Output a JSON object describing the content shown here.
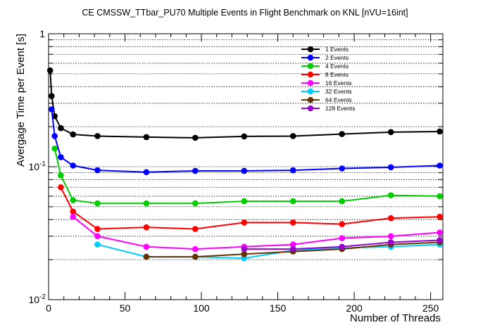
{
  "chart_data": {
    "type": "line",
    "title": "CE CMSSW_TTbar_PU70 Multiple Events in Flight Benchmark on KNL [nVU=16int]",
    "xlabel": "Number of Threads",
    "ylabel": "Avergage Time per Event [s]",
    "xlim": [
      0,
      258
    ],
    "ylim": [
      0.01,
      1
    ],
    "yscale": "log",
    "grid": "horizontal dotted",
    "legend": "top-right",
    "x_ticks": [
      0,
      50,
      100,
      150,
      200,
      250
    ],
    "x_tick_labels": [
      "0",
      "50",
      "100",
      "150",
      "200",
      "250"
    ],
    "y_tick_labels": [
      {
        "value": 0.01,
        "base": "10",
        "exp": "-2"
      },
      {
        "value": 0.1,
        "base": "10",
        "exp": "-1"
      },
      {
        "value": 1,
        "base": "1",
        "exp": ""
      }
    ],
    "series": [
      {
        "name": "1 Events",
        "color": "#000000",
        "x": [
          1,
          2,
          4,
          8,
          16,
          32,
          64,
          96,
          128,
          160,
          192,
          224,
          256
        ],
        "values": [
          0.53,
          0.34,
          0.24,
          0.195,
          0.175,
          0.17,
          0.167,
          0.165,
          0.169,
          0.17,
          0.176,
          0.182,
          0.184
        ]
      },
      {
        "name": "2 Events",
        "color": "#0000ff",
        "x": [
          2,
          4,
          8,
          16,
          32,
          64,
          96,
          128,
          160,
          192,
          224,
          256
        ],
        "values": [
          0.27,
          0.17,
          0.118,
          0.102,
          0.094,
          0.091,
          0.093,
          0.093,
          0.094,
          0.097,
          0.099,
          0.102
        ]
      },
      {
        "name": "4 Events",
        "color": "#00cc00",
        "x": [
          4,
          8,
          16,
          32,
          64,
          96,
          128,
          160,
          192,
          224,
          256
        ],
        "values": [
          0.137,
          0.086,
          0.056,
          0.053,
          0.053,
          0.053,
          0.055,
          0.055,
          0.055,
          0.061,
          0.06
        ]
      },
      {
        "name": "8 Events",
        "color": "#ff0000",
        "x": [
          8,
          16,
          32,
          64,
          96,
          128,
          160,
          192,
          224,
          256
        ],
        "values": [
          0.07,
          0.046,
          0.034,
          0.035,
          0.034,
          0.038,
          0.038,
          0.037,
          0.041,
          0.042
        ]
      },
      {
        "name": "16 Events",
        "color": "#ff00ff",
        "x": [
          16,
          32,
          64,
          96,
          128,
          160,
          192,
          224,
          256
        ],
        "values": [
          0.042,
          0.03,
          0.025,
          0.024,
          0.025,
          0.026,
          0.029,
          0.03,
          0.032
        ]
      },
      {
        "name": "32 Events",
        "color": "#00ccff",
        "x": [
          32,
          64,
          96,
          128,
          160,
          192,
          224,
          256
        ],
        "values": [
          0.026,
          0.021,
          0.021,
          0.0205,
          0.0235,
          0.0245,
          0.025,
          0.026
        ]
      },
      {
        "name": "64 Events",
        "color": "#663300",
        "x": [
          64,
          96,
          128,
          160,
          192,
          224,
          256
        ],
        "values": [
          0.021,
          0.021,
          0.022,
          0.023,
          0.024,
          0.026,
          0.027
        ]
      },
      {
        "name": "128 Events",
        "color": "#9900cc",
        "x": [
          128,
          160,
          192,
          224,
          256
        ],
        "values": [
          0.024,
          0.024,
          0.025,
          0.027,
          0.028
        ]
      }
    ]
  }
}
